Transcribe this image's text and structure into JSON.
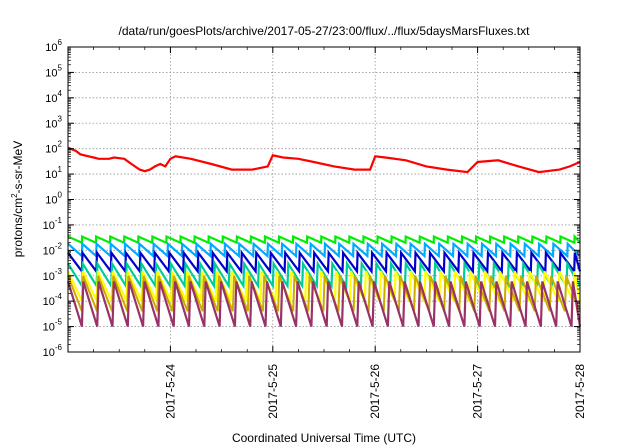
{
  "chart_data": {
    "type": "line",
    "title": "/data/run/goesPlots/archive/2017-05-27/23:00/flux/../flux/5daysMarsFluxes.txt",
    "xlabel": "Coordinated Universal Time (UTC)",
    "ylabel": {
      "base": "protons/cm",
      "sup": "2",
      "rest": "-s-sr-MeV"
    },
    "x_range": [
      "2017-05-23 00:00",
      "2017-05-28 00:00"
    ],
    "x_ticks": [
      "2017-5-24",
      "2017-5-25",
      "2017-5-26",
      "2017-5-27",
      "2017-5-28"
    ],
    "y_scale": "log",
    "y_ticks": [
      {
        "exp": "-6"
      },
      {
        "exp": "-5"
      },
      {
        "exp": "-4"
      },
      {
        "exp": "-3"
      },
      {
        "exp": "-2"
      },
      {
        "exp": "-1"
      },
      {
        "exp": "0"
      },
      {
        "exp": "1"
      },
      {
        "exp": "2"
      },
      {
        "exp": "3"
      },
      {
        "exp": "4"
      },
      {
        "exp": "5"
      },
      {
        "exp": "6"
      }
    ],
    "y_tick_base": "10",
    "ylim": [
      1e-06,
      1000000
    ],
    "grid": true,
    "sawtooth_period_hours": 3.25,
    "series": [
      {
        "color": "#ff0000",
        "stroke": 2.2,
        "profile": [
          [
            0.0,
            110
          ],
          [
            0.08,
            80
          ],
          [
            0.12,
            60
          ],
          [
            0.2,
            50
          ],
          [
            0.25,
            45
          ],
          [
            0.3,
            40
          ],
          [
            0.4,
            40
          ],
          [
            0.45,
            45
          ],
          [
            0.55,
            40
          ],
          [
            0.62,
            25
          ],
          [
            0.7,
            15
          ],
          [
            0.75,
            13
          ],
          [
            0.8,
            15
          ],
          [
            0.85,
            20
          ],
          [
            0.9,
            25
          ],
          [
            0.95,
            20
          ],
          [
            1.0,
            40
          ],
          [
            1.05,
            50
          ],
          [
            1.2,
            40
          ],
          [
            1.4,
            25
          ],
          [
            1.6,
            15
          ],
          [
            1.8,
            15
          ],
          [
            1.95,
            20
          ],
          [
            2.0,
            55
          ],
          [
            2.1,
            45
          ],
          [
            2.25,
            40
          ],
          [
            2.4,
            30
          ],
          [
            2.6,
            20
          ],
          [
            2.8,
            15
          ],
          [
            2.95,
            15
          ],
          [
            3.0,
            50
          ],
          [
            3.1,
            45
          ],
          [
            3.3,
            35
          ],
          [
            3.5,
            20
          ],
          [
            3.7,
            15
          ],
          [
            3.9,
            12
          ],
          [
            4.0,
            30
          ],
          [
            4.2,
            35
          ],
          [
            4.4,
            20
          ],
          [
            4.6,
            12
          ],
          [
            4.8,
            15
          ],
          [
            4.9,
            20
          ],
          [
            5.0,
            30
          ]
        ]
      },
      {
        "color": "#00ee00",
        "stroke": 2.2,
        "peak": 0.035,
        "trough": 0.02
      },
      {
        "color": "#00aaff",
        "stroke": 2.2,
        "peak": 0.018,
        "trough": 0.006
      },
      {
        "color": "#0000cc",
        "stroke": 2.2,
        "peak": 0.008,
        "trough": 0.0015
      },
      {
        "color": "#00cc99",
        "stroke": 2.2,
        "peak": 0.003,
        "trough": 0.0004
      },
      {
        "color": "#ffff00",
        "stroke": 2.2,
        "peak": 0.0015,
        "trough": 0.0001
      },
      {
        "color": "#ccaa00",
        "stroke": 2.0,
        "peak": 0.001,
        "trough": 4e-05
      },
      {
        "color": "#993366",
        "stroke": 2.2,
        "peak": 0.0006,
        "trough": 1e-05
      }
    ]
  }
}
